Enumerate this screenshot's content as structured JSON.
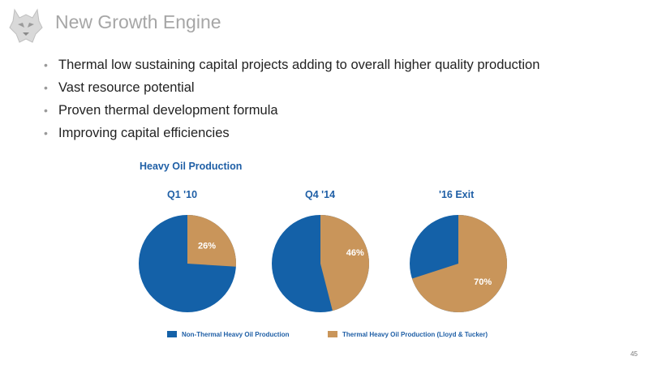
{
  "slide": {
    "title": "New Growth Engine",
    "bullets": [
      "Thermal low sustaining capital projects adding to overall higher quality production",
      "Vast resource potential",
      "Proven thermal development formula",
      "Improving capital efficiencies"
    ],
    "bullet_marker": "•",
    "page_number": "45",
    "logo_icon": "husky-dog-logo"
  },
  "colors": {
    "non_thermal": "#1461a8",
    "thermal": "#c9955a",
    "title_text": "#1f5fa6"
  },
  "chart_data": {
    "type": "pie",
    "title": "Heavy Oil Production",
    "series_names": [
      "Non-Thermal Heavy Oil Production",
      "Thermal Heavy Oil Production (Lloyd & Tucker)"
    ],
    "pies": [
      {
        "label": "Q1 '10",
        "thermal_pct": 26,
        "thermal_label": "26%"
      },
      {
        "label": "Q4 '14",
        "thermal_pct": 46,
        "thermal_label": "46%"
      },
      {
        "label": "'16 Exit",
        "thermal_pct": 70,
        "thermal_label": "70%"
      }
    ],
    "legend": [
      "Non-Thermal Heavy Oil Production",
      "Thermal Heavy Oil Production (Lloyd & Tucker)"
    ],
    "legend_position": "bottom"
  }
}
